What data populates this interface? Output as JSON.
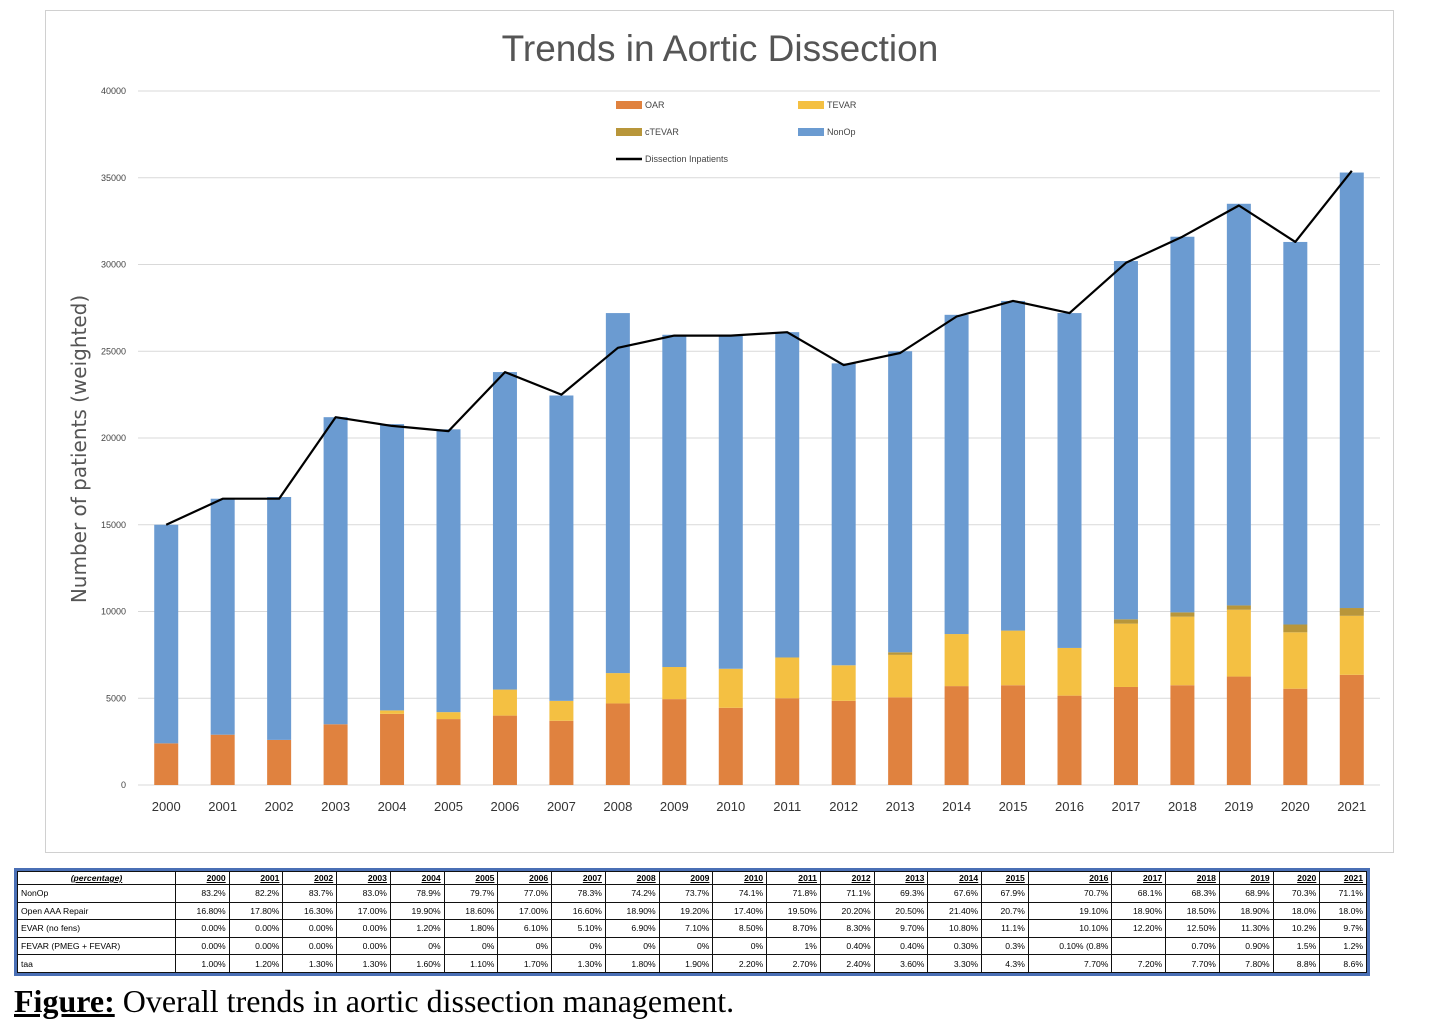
{
  "chart_data": {
    "type": "bar",
    "title": "Trends in Aortic Dissection",
    "xlabel": "",
    "ylabel": "Number of patients (weighted)",
    "ylim": [
      0,
      40000
    ],
    "yticks": [
      0,
      5000,
      10000,
      15000,
      20000,
      25000,
      30000,
      35000,
      40000
    ],
    "grid": true,
    "legend_position": "top-center",
    "stacked": true,
    "categories": [
      "2000",
      "2001",
      "2002",
      "2003",
      "2004",
      "2005",
      "2006",
      "2007",
      "2008",
      "2009",
      "2010",
      "2011",
      "2012",
      "2013",
      "2014",
      "2015",
      "2016",
      "2017",
      "2018",
      "2019",
      "2020",
      "2021"
    ],
    "series": [
      {
        "name": "OAR",
        "color": "#e0823f",
        "kind": "bar",
        "values": [
          2400,
          2900,
          2600,
          3500,
          4100,
          3800,
          4000,
          3700,
          4700,
          4950,
          4450,
          5000,
          4850,
          5050,
          5700,
          5750,
          5150,
          5650,
          5750,
          6250,
          5550,
          6350
        ]
      },
      {
        "name": "TEVAR",
        "color": "#f4c042",
        "kind": "bar",
        "values": [
          0,
          0,
          0,
          0,
          200,
          400,
          1500,
          1150,
          1750,
          1850,
          2250,
          2350,
          2050,
          2450,
          3000,
          3150,
          2750,
          3650,
          3950,
          3850,
          3250,
          3400
        ]
      },
      {
        "name": "cTEVAR",
        "color": "#b8963a",
        "kind": "bar",
        "values": [
          0,
          0,
          0,
          0,
          0,
          0,
          0,
          0,
          0,
          0,
          0,
          0,
          0,
          150,
          0,
          0,
          0,
          250,
          250,
          250,
          450,
          450
        ]
      },
      {
        "name": "NonOp",
        "color": "#6b9bd1",
        "kind": "bar",
        "values": [
          12600,
          13600,
          14000,
          17700,
          16500,
          16300,
          18300,
          17600,
          20750,
          19150,
          19250,
          18750,
          17400,
          17350,
          18400,
          19000,
          19300,
          20650,
          21650,
          23150,
          22050,
          25100
        ]
      },
      {
        "name": "Dissection Inpatients",
        "color": "#000000",
        "kind": "line",
        "values": [
          15000,
          16500,
          16500,
          21200,
          20700,
          20400,
          23800,
          22500,
          25200,
          25900,
          25900,
          26100,
          24200,
          24900,
          27000,
          27900,
          27200,
          30100,
          31600,
          33400,
          31300,
          35400
        ]
      }
    ]
  },
  "table": {
    "corner": "(percentage)",
    "years": [
      "2000",
      "2001",
      "2002",
      "2003",
      "2004",
      "2005",
      "2006",
      "2007",
      "2008",
      "2009",
      "2010",
      "2011",
      "2012",
      "2013",
      "2014",
      "2015",
      "2016",
      "2017",
      "2018",
      "2019",
      "2020",
      "2021"
    ],
    "rows": [
      {
        "label": "NonOp",
        "cells": [
          "83.2%",
          "82.2%",
          "83.7%",
          "83.0%",
          "78.9%",
          "79.7%",
          "77.0%",
          "78.3%",
          "74.2%",
          "73.7%",
          "74.1%",
          "71.8%",
          "71.1%",
          "69.3%",
          "67.6%",
          "67.9%",
          "70.7%",
          "68.1%",
          "68.3%",
          "68.9%",
          "70.3%",
          "71.1%"
        ]
      },
      {
        "label": "Open AAA Repair",
        "cells": [
          "16.80%",
          "17.80%",
          "16.30%",
          "17.00%",
          "19.90%",
          "18.60%",
          "17.00%",
          "16.60%",
          "18.90%",
          "19.20%",
          "17.40%",
          "19.50%",
          "20.20%",
          "20.50%",
          "21.40%",
          "20.7%",
          "19.10%",
          "18.90%",
          "18.50%",
          "18.90%",
          "18.0%",
          "18.0%"
        ]
      },
      {
        "label": "EVAR (no fens)",
        "cells": [
          "0.00%",
          "0.00%",
          "0.00%",
          "0.00%",
          "1.20%",
          "1.80%",
          "6.10%",
          "5.10%",
          "6.90%",
          "7.10%",
          "8.50%",
          "8.70%",
          "8.30%",
          "9.70%",
          "10.80%",
          "11.1%",
          "10.10%",
          "12.20%",
          "12.50%",
          "11.30%",
          "10.2%",
          "9.7%"
        ]
      },
      {
        "label": "FEVAR (PMEG + FEVAR)",
        "cells": [
          "0.00%",
          "0.00%",
          "0.00%",
          "0.00%",
          "0%",
          "0%",
          "0%",
          "0%",
          "0%",
          "0%",
          "0%",
          "1%",
          "0.40%",
          "0.40%",
          "0.30%",
          "0.3%",
          "0.10% (0.8%",
          "",
          "0.70%",
          "0.90%",
          "1.5%",
          "1.2%"
        ]
      },
      {
        "label": "taa",
        "cells": [
          "1.00%",
          "1.20%",
          "1.30%",
          "1.30%",
          "1.60%",
          "1.10%",
          "1.70%",
          "1.30%",
          "1.80%",
          "1.90%",
          "2.20%",
          "2.70%",
          "2.40%",
          "3.60%",
          "3.30%",
          "4.3%",
          "7.70%",
          "7.20%",
          "7.70%",
          "7.80%",
          "8.8%",
          "8.6%"
        ]
      }
    ]
  },
  "caption": {
    "lead": "Figure:",
    "text": " Overall trends in aortic dissection management."
  }
}
